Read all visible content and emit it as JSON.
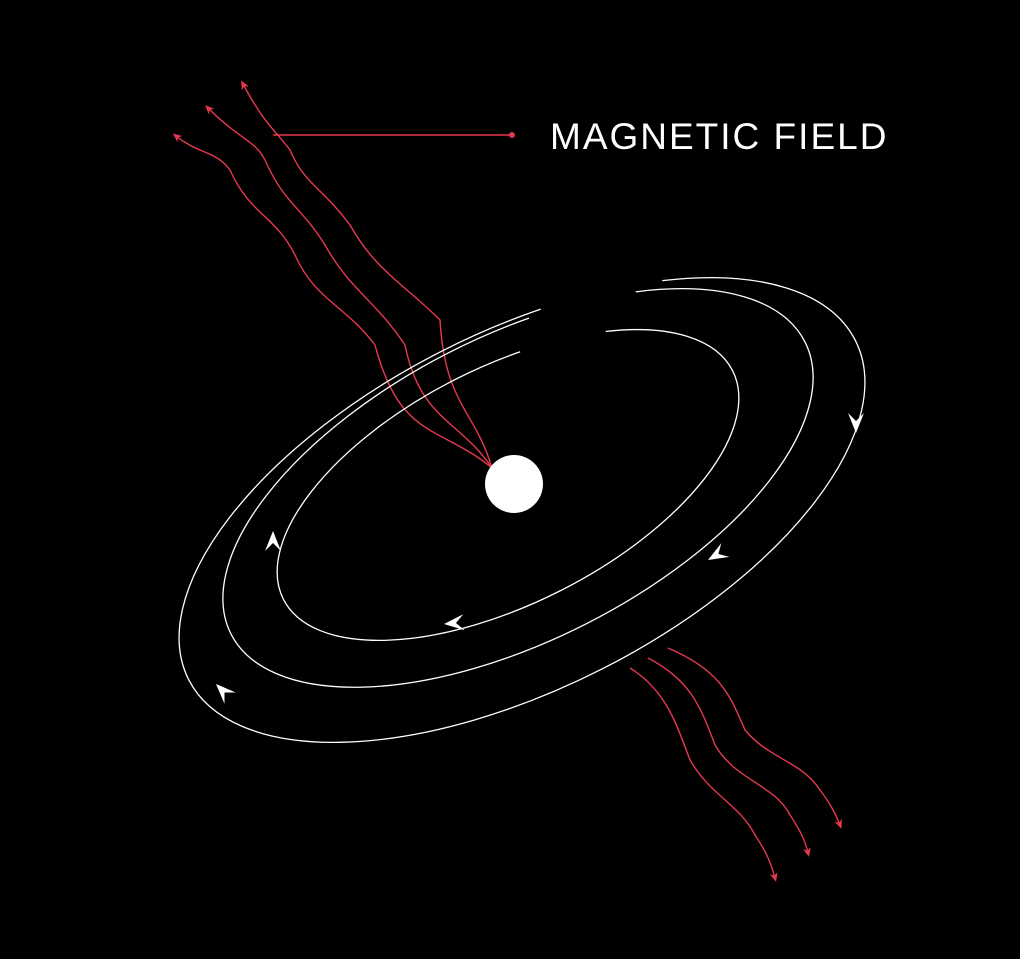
{
  "label": {
    "text": "MAGNETIC FIELD"
  },
  "colors": {
    "background": "#000000",
    "orbit_lines": "#ffffff",
    "field_lines": "#e8384f",
    "central_body": "#ffffff"
  }
}
